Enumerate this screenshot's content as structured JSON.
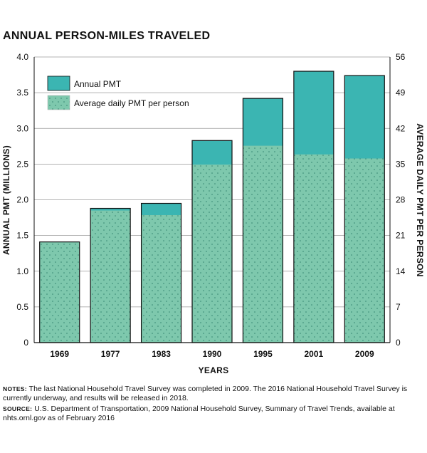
{
  "chart_data": {
    "type": "bar",
    "title": "ANNUAL PERSON-MILES TRAVELED",
    "categories": [
      "1969",
      "1977",
      "1983",
      "1990",
      "1995",
      "2001",
      "2009"
    ],
    "series": [
      {
        "name": "Annual PMT",
        "axis": "left",
        "values": [
          1.41,
          1.88,
          1.95,
          2.83,
          3.42,
          3.8,
          3.74
        ],
        "color": "#3bb5b2"
      },
      {
        "name": "Average daily PMT per person",
        "axis": "right",
        "values": [
          19.7,
          25.9,
          25.0,
          34.9,
          38.6,
          36.9,
          36.1
        ],
        "color": "#7ec8ad"
      }
    ],
    "xlabel": "YEARS",
    "ylabel": "ANNUAL PMT (MILLIONS)",
    "ylabel_right": "AVERAGE DAILY PMT PER PERSON",
    "ylim": [
      0,
      4.0
    ],
    "ylim_right": [
      0,
      56
    ],
    "yticks": [
      "0",
      "0.5",
      "1.0",
      "1.5",
      "2.0",
      "2.5",
      "3.0",
      "3.5",
      "4.0"
    ],
    "yticks_right": [
      "0",
      "7",
      "14",
      "21",
      "28",
      "35",
      "42",
      "49",
      "56"
    ],
    "grid": true,
    "legend_position": "top-left"
  },
  "notes": {
    "label": "NOTES:",
    "text": "The last National Household Travel Survey was completed in 2009. The 2016 National Household Travel Survey is currently underway, and results will be released in 2018."
  },
  "source": {
    "label": "SOURCE:",
    "text": "U.S. Department of Transportation, 2009 National Household Survey, Summary of Travel Trends, available at nhts.ornl.gov as of February 2016"
  }
}
